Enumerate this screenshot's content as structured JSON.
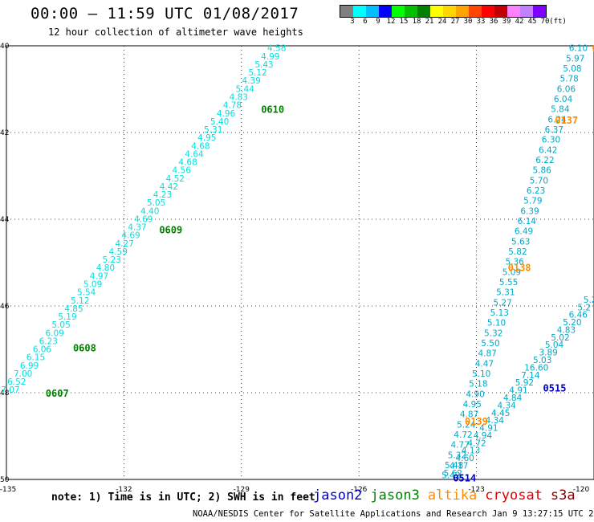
{
  "header": {
    "title": "00:00 – 11:59 UTC 01/08/2017",
    "subtitle": "12 hour collection of altimeter wave heights"
  },
  "colorbar": {
    "colors": [
      "#808080",
      "#00ffff",
      "#00bfff",
      "#0000ff",
      "#00ff00",
      "#00c000",
      "#008000",
      "#ffff00",
      "#ffd700",
      "#ffa500",
      "#ff4500",
      "#ff0000",
      "#c00000",
      "#ff80ff",
      "#c080ff",
      "#8000ff"
    ],
    "labels": [
      "3",
      "6",
      "9",
      "12",
      "15",
      "18",
      "21",
      "24",
      "27",
      "30",
      "33",
      "36",
      "39",
      "42",
      "45",
      "70",
      "(ft)"
    ]
  },
  "axes": {
    "x_ticks": [
      "-135",
      "-132",
      "-129",
      "-126",
      "-123",
      "-120"
    ],
    "y_ticks": [
      "40",
      "42",
      "44",
      "46",
      "48",
      "50"
    ]
  },
  "passes": [
    {
      "time": "0610",
      "color": "#008000",
      "label_lon": -128.5,
      "label_lat": 41.45
    },
    {
      "time": "0609",
      "color": "#008000",
      "label_lon": -131.1,
      "label_lat": 44.23
    },
    {
      "time": "0608",
      "color": "#008000",
      "label_lon": -133.3,
      "label_lat": 46.95
    },
    {
      "time": "0607",
      "color": "#008000",
      "label_lon": -134.0,
      "label_lat": 48.0
    },
    {
      "time": "0137",
      "color": "#ff8c00",
      "label_lon": -121.0,
      "label_lat": 41.7
    },
    {
      "time": "0138",
      "color": "#ff8c00",
      "label_lon": -122.2,
      "label_lat": 45.1
    },
    {
      "time": "0139",
      "color": "#ff8c00",
      "label_lon": -123.3,
      "label_lat": 48.65
    },
    {
      "time": "01",
      "color": "#ff8c00",
      "label_lon": -120.05,
      "label_lat": 40.05
    },
    {
      "time": "0515",
      "color": "#0000c0",
      "label_lon": -121.3,
      "label_lat": 47.88
    },
    {
      "time": "0514",
      "color": "#0000c0",
      "label_lon": -123.6,
      "label_lat": 49.95
    }
  ],
  "tracks": [
    {
      "color": "#00e0e0",
      "start_lon": -128.1,
      "start_lat": 40.05,
      "end_lon": -134.9,
      "end_lat": 47.93,
      "values": [
        "4.58",
        "4.99",
        "5.43",
        "5.12",
        "4.39",
        "5.44",
        "4.83",
        "4.78",
        "4.96",
        "5.40",
        "5.31",
        "4.95",
        "4.68",
        "4.64",
        "4.68",
        "4.56",
        "4.52",
        "4.42",
        "4.23",
        "5.05",
        "4.40",
        "4.69",
        "4.37",
        "4.69",
        "4.27",
        "4.59",
        "5.23",
        "4.80",
        "4.97",
        "5.09",
        "5.54",
        "5.12",
        "4.85",
        "5.19",
        "5.05",
        "6.09",
        "6.23",
        "6.06",
        "6.15",
        "6.99",
        "7.00",
        "6.52",
        "7.07"
      ]
    },
    {
      "color": "#00a8c8",
      "start_lon": -120.4,
      "start_lat": 40.05,
      "end_lon": -123.65,
      "end_lat": 49.9,
      "values": [
        "6.10",
        "5.97",
        "5.08",
        "5.78",
        "6.06",
        "6.04",
        "5.84",
        "6.24",
        "6.37",
        "6.30",
        "6.42",
        "6.22",
        "5.86",
        "5.70",
        "6.23",
        "5.79",
        "6.39",
        "6.14",
        "6.49",
        "5.63",
        "5.82",
        "5.36",
        "5.09",
        "5.55",
        "5.31",
        "5.27",
        "5.13",
        "5.10",
        "5.32",
        "5.50",
        "4.87",
        "4.47",
        "5.10",
        "5.18",
        "4.90",
        "4.95",
        "4.87",
        "5.24",
        "4.72",
        "4.77",
        "5.32",
        "5.48",
        "5.42"
      ]
    },
    {
      "color": "#00a8c8",
      "start_lon": -120.1,
      "start_lat": 45.85,
      "end_lon": -123.6,
      "end_lat": 49.85,
      "values": [
        "5.2",
        "5.2",
        "6.46",
        "5.20",
        "4.83",
        "5.02",
        "5.04",
        "3.89",
        "5.03",
        "16.60",
        "7.14",
        "5.92",
        "4.91",
        "4.84",
        "4.34",
        "4.45",
        "4.34",
        "4.91",
        "4.94",
        "4.72",
        "4.13",
        "4.60",
        "4.17",
        "5.62"
      ]
    }
  ],
  "legend": {
    "items": [
      {
        "label": "jason2",
        "color": "#0000c0"
      },
      {
        "label": "jason3",
        "color": "#008000"
      },
      {
        "label": "altika",
        "color": "#ff8c00"
      },
      {
        "label": "cryosat",
        "color": "#e00000"
      },
      {
        "label": "s3a",
        "color": "#800000"
      }
    ]
  },
  "note": "note: 1) Time is in UTC; 2) SWH is in feet",
  "footer": "NOAA/NESDIS Center for Satellite Applications and Research   Jan  9 13:27:15 UTC 2017"
}
